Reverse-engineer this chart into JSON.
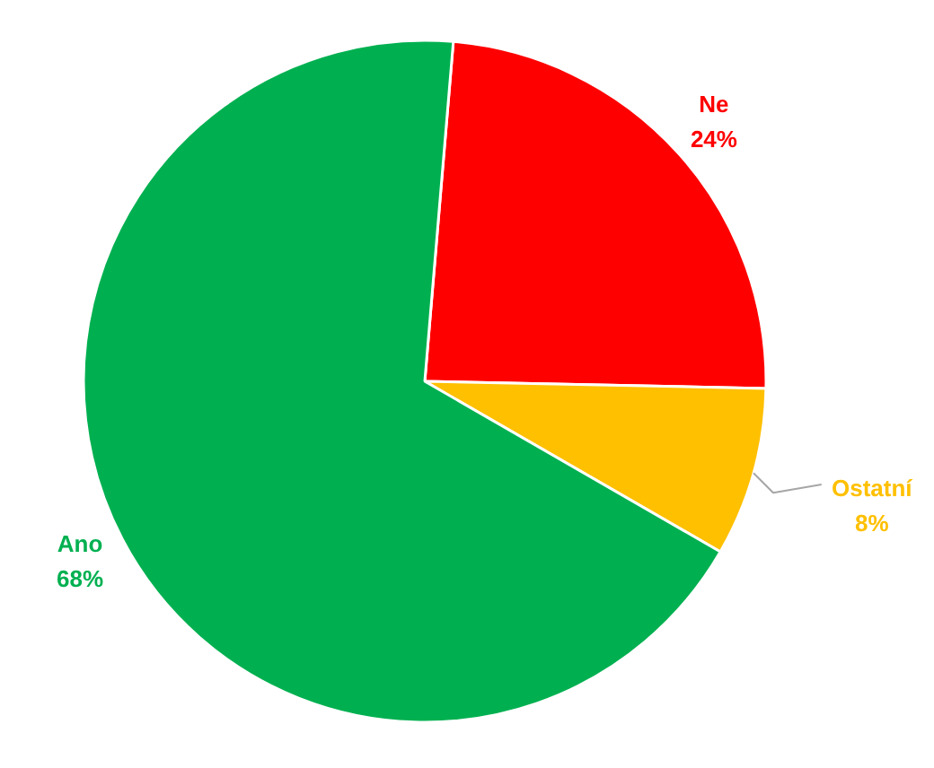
{
  "chart_data": {
    "type": "pie",
    "categories": [
      "Ne",
      "Ostatní",
      "Ano"
    ],
    "values": [
      24,
      8,
      68
    ],
    "colors": [
      "#ff0000",
      "#ffc000",
      "#00b050"
    ],
    "value_labels": [
      "24%",
      "8%",
      "68%"
    ]
  }
}
